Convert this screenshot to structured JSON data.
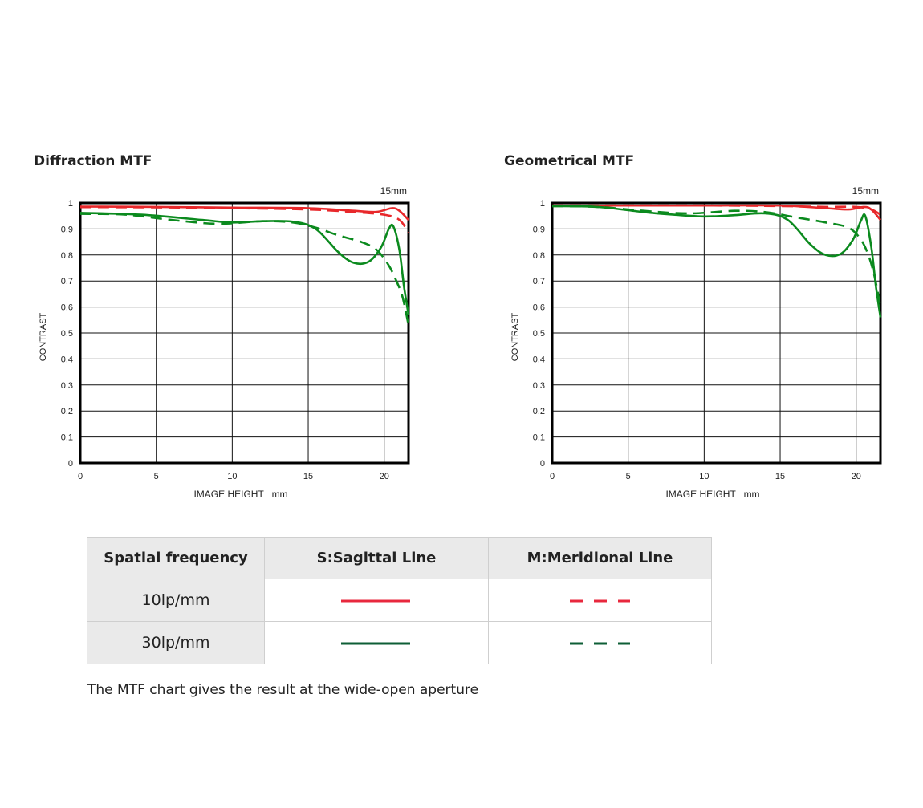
{
  "chart_data": [
    {
      "type": "line",
      "title": "Diffraction MTF",
      "annotation": "15mm",
      "xlabel": "IMAGE HEIGHT   mm",
      "ylabel": "CONTRAST",
      "xlim": [
        0,
        21.6
      ],
      "ylim": [
        0,
        1
      ],
      "x_ticks": [
        0,
        5,
        10,
        15,
        20
      ],
      "y_ticks": [
        0,
        0.1,
        0.2,
        0.3,
        0.4,
        0.5,
        0.6,
        0.7,
        0.8,
        0.9,
        1
      ],
      "y_tick_labels": [
        "0",
        "0.1",
        "0.2",
        "0.3",
        "0.4",
        "0.5",
        "0.6",
        "0.7",
        "0.8",
        "0.9",
        "1"
      ],
      "grid": true,
      "series": [
        {
          "name": "10lp/mm S",
          "color": "#e8282b",
          "style": "solid",
          "points": [
            [
              0,
              0.986
            ],
            [
              5,
              0.985
            ],
            [
              10,
              0.982
            ],
            [
              15,
              0.98
            ],
            [
              18,
              0.97
            ],
            [
              19.5,
              0.966
            ],
            [
              20.5,
              0.98
            ],
            [
              21,
              0.97
            ],
            [
              21.6,
              0.935
            ]
          ]
        },
        {
          "name": "10lp/mm M",
          "color": "#e8282b",
          "style": "dashed",
          "points": [
            [
              0,
              0.984
            ],
            [
              5,
              0.983
            ],
            [
              10,
              0.98
            ],
            [
              15,
              0.975
            ],
            [
              18,
              0.965
            ],
            [
              20,
              0.955
            ],
            [
              21,
              0.935
            ],
            [
              21.6,
              0.885
            ]
          ]
        },
        {
          "name": "30lp/mm S",
          "color": "#0b8a1e",
          "style": "solid",
          "points": [
            [
              0,
              0.962
            ],
            [
              4,
              0.955
            ],
            [
              8,
              0.935
            ],
            [
              10,
              0.925
            ],
            [
              12,
              0.93
            ],
            [
              14,
              0.928
            ],
            [
              15.5,
              0.9
            ],
            [
              17,
              0.81
            ],
            [
              18,
              0.77
            ],
            [
              19,
              0.775
            ],
            [
              19.8,
              0.83
            ],
            [
              20.3,
              0.9
            ],
            [
              20.6,
              0.91
            ],
            [
              21,
              0.82
            ],
            [
              21.3,
              0.68
            ],
            [
              21.6,
              0.57
            ]
          ]
        },
        {
          "name": "30lp/mm M",
          "color": "#0b8a1e",
          "style": "dashed",
          "points": [
            [
              0,
              0.958
            ],
            [
              3,
              0.955
            ],
            [
              6,
              0.935
            ],
            [
              9,
              0.92
            ],
            [
              12,
              0.93
            ],
            [
              14,
              0.925
            ],
            [
              15.5,
              0.905
            ],
            [
              17,
              0.875
            ],
            [
              18.5,
              0.85
            ],
            [
              19.5,
              0.82
            ],
            [
              20.3,
              0.76
            ],
            [
              20.8,
              0.7
            ],
            [
              21.2,
              0.64
            ],
            [
              21.6,
              0.53
            ]
          ]
        }
      ]
    },
    {
      "type": "line",
      "title": "Geometrical MTF",
      "annotation": "15mm",
      "xlabel": "IMAGE HEIGHT   mm",
      "ylabel": "CONTRAST",
      "xlim": [
        0,
        21.6
      ],
      "ylim": [
        0,
        1
      ],
      "x_ticks": [
        0,
        5,
        10,
        15,
        20
      ],
      "y_ticks": [
        0,
        0.1,
        0.2,
        0.3,
        0.4,
        0.5,
        0.6,
        0.7,
        0.8,
        0.9,
        1
      ],
      "y_tick_labels": [
        "0",
        "0.1",
        "0.2",
        "0.3",
        "0.4",
        "0.5",
        "0.6",
        "0.7",
        "0.8",
        "0.9",
        "1"
      ],
      "grid": true,
      "series": [
        {
          "name": "10lp/mm S",
          "color": "#e8282b",
          "style": "solid",
          "points": [
            [
              0,
              0.99
            ],
            [
              5,
              0.99
            ],
            [
              10,
              0.99
            ],
            [
              15,
              0.99
            ],
            [
              18,
              0.98
            ],
            [
              19.5,
              0.975
            ],
            [
              20.5,
              0.985
            ],
            [
              21,
              0.975
            ],
            [
              21.6,
              0.935
            ]
          ]
        },
        {
          "name": "10lp/mm M",
          "color": "#e8282b",
          "style": "dashed",
          "points": [
            [
              0,
              0.99
            ],
            [
              5,
              0.99
            ],
            [
              10,
              0.99
            ],
            [
              15,
              0.988
            ],
            [
              18,
              0.985
            ],
            [
              20,
              0.985
            ],
            [
              21,
              0.975
            ],
            [
              21.6,
              0.955
            ]
          ]
        },
        {
          "name": "30lp/mm S",
          "color": "#0b8a1e",
          "style": "solid",
          "points": [
            [
              0,
              0.988
            ],
            [
              3,
              0.985
            ],
            [
              6,
              0.965
            ],
            [
              8,
              0.955
            ],
            [
              10,
              0.948
            ],
            [
              12,
              0.953
            ],
            [
              14,
              0.96
            ],
            [
              15.5,
              0.935
            ],
            [
              17,
              0.84
            ],
            [
              18,
              0.8
            ],
            [
              19,
              0.805
            ],
            [
              19.8,
              0.86
            ],
            [
              20.3,
              0.93
            ],
            [
              20.6,
              0.95
            ],
            [
              21,
              0.83
            ],
            [
              21.3,
              0.68
            ],
            [
              21.6,
              0.56
            ]
          ]
        },
        {
          "name": "30lp/mm M",
          "color": "#0b8a1e",
          "style": "dashed",
          "points": [
            [
              0,
              0.988
            ],
            [
              3,
              0.985
            ],
            [
              6,
              0.97
            ],
            [
              9,
              0.96
            ],
            [
              12,
              0.97
            ],
            [
              14,
              0.965
            ],
            [
              16,
              0.945
            ],
            [
              18,
              0.925
            ],
            [
              19.5,
              0.905
            ],
            [
              20.3,
              0.86
            ],
            [
              20.8,
              0.8
            ],
            [
              21.2,
              0.72
            ],
            [
              21.6,
              0.6
            ]
          ]
        }
      ]
    }
  ],
  "legend_table": {
    "headers": [
      "Spatial frequency",
      "S:Sagittal Line",
      "M:Meridional Line"
    ],
    "rows": [
      {
        "frequency": "10lp/mm",
        "color": "#e8283d"
      },
      {
        "frequency": "30lp/mm",
        "color": "#0e5e36"
      }
    ]
  },
  "footnote": "The MTF chart gives the result at the wide-open aperture"
}
